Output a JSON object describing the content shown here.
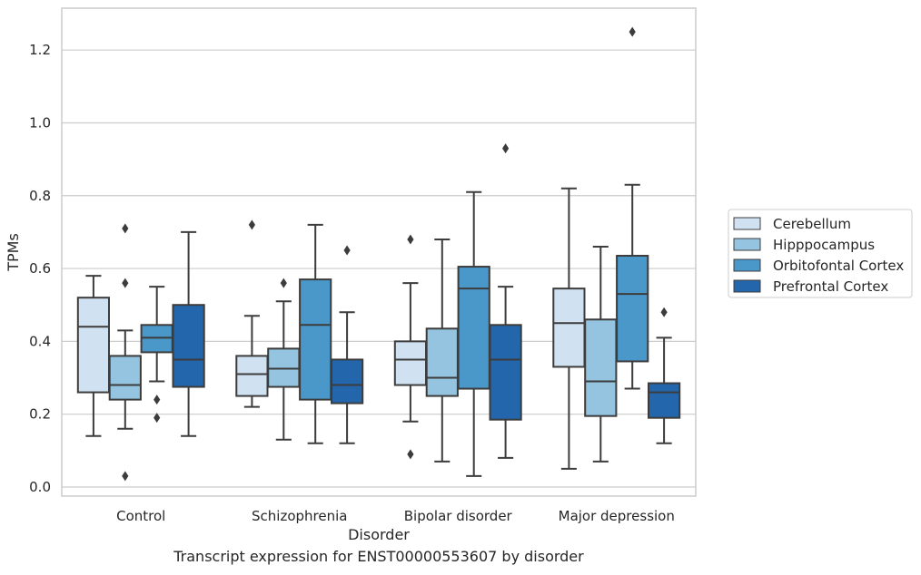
{
  "caption": "Transcript expression for ENST00000553607 by disorder",
  "chart_data": {
    "type": "boxplot",
    "xlabel": "Disorder",
    "ylabel": "TPMs",
    "ylim": [
      -0.025,
      1.315
    ],
    "yticks": [
      0.0,
      0.2,
      0.4,
      0.6,
      0.8,
      1.0,
      1.2
    ],
    "ytick_labels": [
      "0.0",
      "0.2",
      "0.4",
      "0.6",
      "0.8",
      "1.0",
      "1.2"
    ],
    "grid": true,
    "legend_position": "right",
    "categories": [
      "Control",
      "Schizophrenia",
      "Bipolar disorder",
      "Major depression"
    ],
    "series": [
      {
        "name": "Cerebellum",
        "color": "#d0e1f2",
        "boxes": [
          {
            "whislo": 0.14,
            "q1": 0.26,
            "med": 0.44,
            "q3": 0.52,
            "whishi": 0.58,
            "fliers": []
          },
          {
            "whislo": 0.22,
            "q1": 0.25,
            "med": 0.31,
            "q3": 0.36,
            "whishi": 0.47,
            "fliers": [
              0.72
            ]
          },
          {
            "whislo": 0.18,
            "q1": 0.28,
            "med": 0.35,
            "q3": 0.4,
            "whishi": 0.56,
            "fliers": [
              0.68,
              0.09
            ]
          },
          {
            "whislo": 0.05,
            "q1": 0.33,
            "med": 0.45,
            "q3": 0.545,
            "whishi": 0.82,
            "fliers": []
          }
        ]
      },
      {
        "name": "Hipppocampus",
        "color": "#94c4df",
        "boxes": [
          {
            "whislo": 0.16,
            "q1": 0.24,
            "med": 0.28,
            "q3": 0.36,
            "whishi": 0.43,
            "fliers": [
              0.71,
              0.56,
              0.03
            ]
          },
          {
            "whislo": 0.13,
            "q1": 0.275,
            "med": 0.325,
            "q3": 0.38,
            "whishi": 0.51,
            "fliers": [
              0.56
            ]
          },
          {
            "whislo": 0.07,
            "q1": 0.25,
            "med": 0.3,
            "q3": 0.435,
            "whishi": 0.68,
            "fliers": []
          },
          {
            "whislo": 0.07,
            "q1": 0.195,
            "med": 0.29,
            "q3": 0.46,
            "whishi": 0.66,
            "fliers": []
          }
        ]
      },
      {
        "name": "Orbitofontal Cortex",
        "color": "#4a98c9",
        "boxes": [
          {
            "whislo": 0.29,
            "q1": 0.37,
            "med": 0.41,
            "q3": 0.445,
            "whishi": 0.55,
            "fliers": [
              0.24,
              0.19
            ]
          },
          {
            "whislo": 0.12,
            "q1": 0.24,
            "med": 0.445,
            "q3": 0.57,
            "whishi": 0.72,
            "fliers": []
          },
          {
            "whislo": 0.03,
            "q1": 0.27,
            "med": 0.545,
            "q3": 0.605,
            "whishi": 0.81,
            "fliers": []
          },
          {
            "whislo": 0.27,
            "q1": 0.345,
            "med": 0.53,
            "q3": 0.635,
            "whishi": 0.83,
            "fliers": [
              1.25
            ]
          }
        ]
      },
      {
        "name": "Prefrontal Cortex",
        "color": "#2366ab",
        "boxes": [
          {
            "whislo": 0.14,
            "q1": 0.275,
            "med": 0.35,
            "q3": 0.5,
            "whishi": 0.7,
            "fliers": []
          },
          {
            "whislo": 0.12,
            "q1": 0.23,
            "med": 0.28,
            "q3": 0.35,
            "whishi": 0.48,
            "fliers": [
              0.65
            ]
          },
          {
            "whislo": 0.08,
            "q1": 0.185,
            "med": 0.35,
            "q3": 0.445,
            "whishi": 0.55,
            "fliers": [
              0.93
            ]
          },
          {
            "whislo": 0.12,
            "q1": 0.19,
            "med": 0.26,
            "q3": 0.285,
            "whishi": 0.41,
            "fliers": [
              0.48
            ]
          }
        ]
      }
    ]
  }
}
